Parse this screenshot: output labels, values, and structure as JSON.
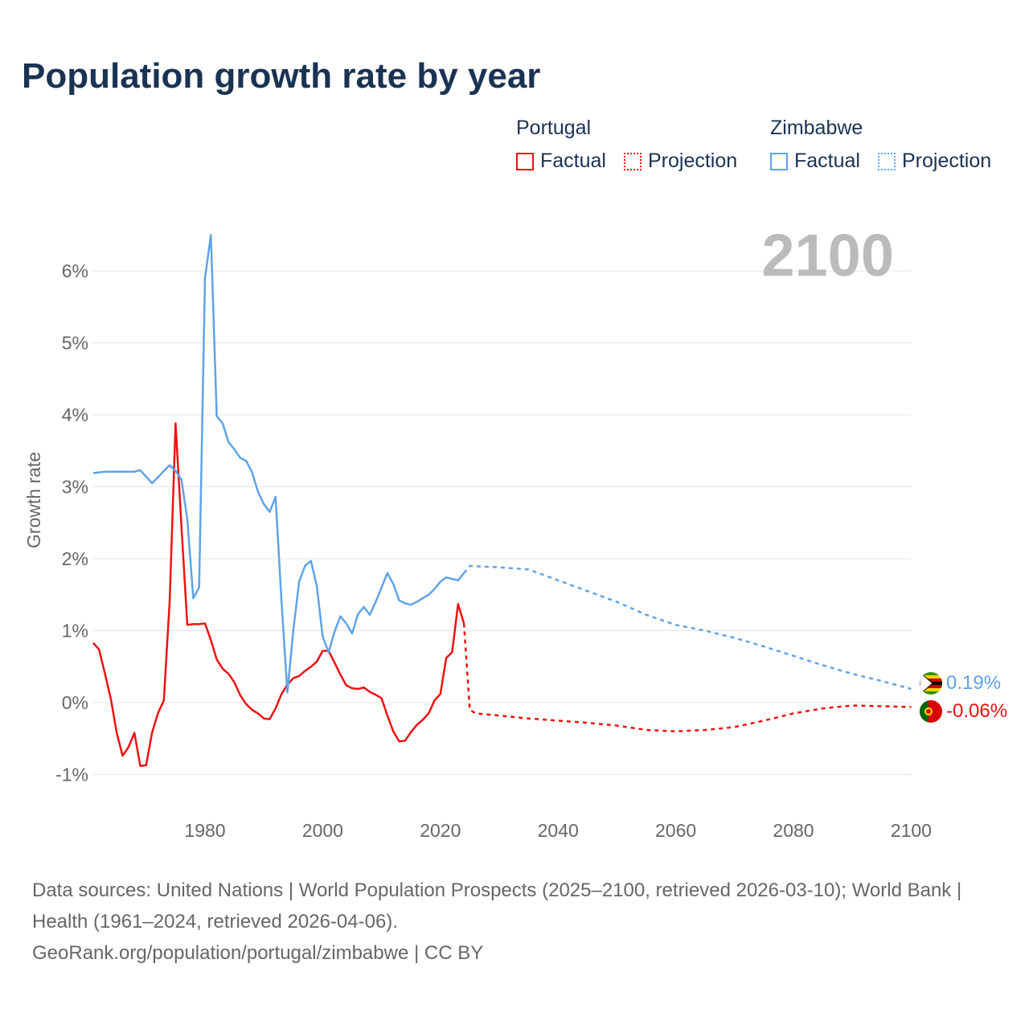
{
  "title": "Population growth rate by year",
  "legend": {
    "groups": [
      {
        "name": "Portugal",
        "color": "#ee1111",
        "items": [
          "Factual",
          "Projection"
        ]
      },
      {
        "name": "Zimbabwe",
        "color": "#5fa3e8",
        "items": [
          "Factual",
          "Projection"
        ]
      }
    ]
  },
  "year_label": "2100",
  "source": {
    "line1": "Data sources: United Nations | World Population Prospects (2025–2100, retrieved 2026-03-10); World Bank | Health (1961–2024, retrieved 2026-04-06).",
    "line2": "GeoRank.org/population/portugal/zimbabwe | CC BY"
  },
  "chart_data": {
    "type": "line",
    "title": "Population growth rate by year",
    "xlabel": "",
    "ylabel": "Growth rate",
    "xlim": [
      1961,
      2100
    ],
    "ylim": [
      -1.5,
      6.5
    ],
    "x_ticks": [
      1980,
      2000,
      2020,
      2040,
      2060,
      2080,
      2100
    ],
    "y_ticks": [
      -1,
      0,
      1,
      2,
      3,
      4,
      5,
      6
    ],
    "y_tick_labels": [
      "-1%",
      "0%",
      "1%",
      "2%",
      "3%",
      "4%",
      "5%",
      "6%"
    ],
    "series": [
      {
        "name": "Portugal",
        "kind": "factual",
        "color": "#ee1111",
        "x_start": 1961,
        "values": [
          0.83,
          0.74,
          0.4,
          0.05,
          -0.42,
          -0.74,
          -0.62,
          -0.42,
          -0.88,
          -0.87,
          -0.42,
          -0.15,
          0.03,
          1.42,
          3.88,
          2.45,
          1.08,
          1.09,
          1.09,
          1.1,
          0.87,
          0.6,
          0.47,
          0.4,
          0.28,
          0.1,
          -0.02,
          -0.1,
          -0.15,
          -0.22,
          -0.23,
          -0.08,
          0.12,
          0.25,
          0.34,
          0.37,
          0.44,
          0.5,
          0.57,
          0.72,
          0.72,
          0.56,
          0.39,
          0.24,
          0.2,
          0.19,
          0.21,
          0.15,
          0.11,
          0.06,
          -0.18,
          -0.4,
          -0.54,
          -0.53,
          -0.41,
          -0.31,
          -0.24,
          -0.15,
          0.03,
          0.12,
          0.62,
          0.7,
          1.37,
          1.1
        ]
      },
      {
        "name": "Portugal",
        "kind": "projection",
        "color": "#ee1111",
        "x": [
          2024,
          2025,
          2026,
          2030,
          2035,
          2040,
          2045,
          2050,
          2055,
          2060,
          2065,
          2070,
          2075,
          2080,
          2085,
          2090,
          2095,
          2100
        ],
        "values": [
          1.1,
          -0.1,
          -0.15,
          -0.18,
          -0.22,
          -0.25,
          -0.28,
          -0.32,
          -0.38,
          -0.4,
          -0.38,
          -0.34,
          -0.25,
          -0.15,
          -0.08,
          -0.04,
          -0.05,
          -0.06
        ]
      },
      {
        "name": "Zimbabwe",
        "kind": "factual",
        "color": "#5fa3e8",
        "x_start": 1961,
        "values": [
          3.19,
          3.2,
          3.21,
          3.21,
          3.21,
          3.21,
          3.21,
          3.21,
          3.23,
          3.14,
          3.05,
          3.13,
          3.22,
          3.3,
          3.22,
          3.1,
          2.55,
          1.45,
          1.6,
          5.9,
          6.5,
          3.98,
          3.88,
          3.62,
          3.52,
          3.4,
          3.36,
          3.2,
          2.93,
          2.76,
          2.65,
          2.86,
          1.4,
          0.14,
          1.0,
          1.68,
          1.9,
          1.97,
          1.62,
          0.92,
          0.7,
          0.98,
          1.2,
          1.1,
          0.96,
          1.23,
          1.33,
          1.22,
          1.4,
          1.6,
          1.8,
          1.65,
          1.42,
          1.38,
          1.36,
          1.4,
          1.45,
          1.5,
          1.58,
          1.68,
          1.74,
          1.72,
          1.7,
          1.8
        ]
      },
      {
        "name": "Zimbabwe",
        "kind": "projection",
        "color": "#5fa3e8",
        "x": [
          2024,
          2025,
          2030,
          2035,
          2040,
          2045,
          2050,
          2055,
          2060,
          2065,
          2070,
          2075,
          2080,
          2085,
          2090,
          2095,
          2100
        ],
        "values": [
          1.8,
          1.9,
          1.88,
          1.85,
          1.7,
          1.55,
          1.4,
          1.22,
          1.08,
          1.0,
          0.9,
          0.78,
          0.65,
          0.52,
          0.4,
          0.3,
          0.19
        ]
      }
    ],
    "end_labels": [
      {
        "country": "Zimbabwe",
        "text": "0.19%"
      },
      {
        "country": "Portugal",
        "text": "-0.06%"
      }
    ]
  }
}
